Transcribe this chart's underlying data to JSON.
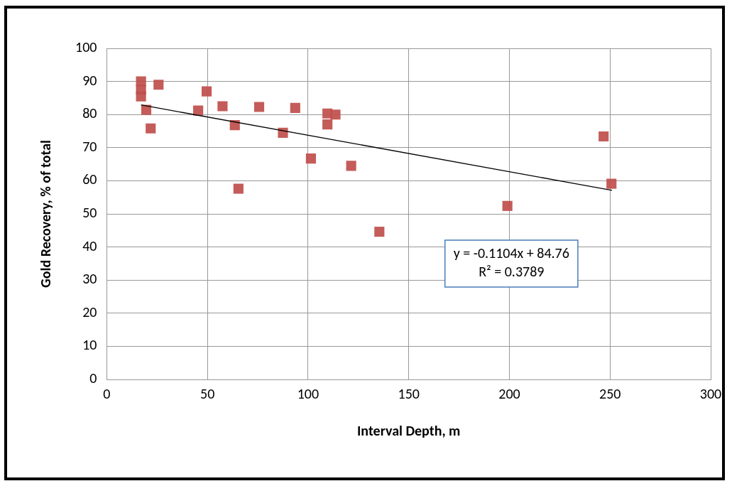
{
  "chart_data": {
    "type": "scatter",
    "xlabel": "Interval Depth, m",
    "ylabel": "Gold Recovery, % of total",
    "xlim": [
      0,
      300
    ],
    "xticks": [
      0,
      50,
      100,
      150,
      200,
      250,
      300
    ],
    "ylim": [
      0,
      100
    ],
    "yticks": [
      0,
      10,
      20,
      30,
      40,
      50,
      60,
      70,
      80,
      90,
      100
    ],
    "grid": true,
    "legend": false,
    "marker": "square",
    "series": [
      {
        "color": "#c0504d",
        "x": [
          17,
          17,
          17,
          25.7,
          19.6,
          21.8,
          45.4,
          49.6,
          57.5,
          63.6,
          65.4,
          75.7,
          87.5,
          93.6,
          101.4,
          109.6,
          109.6,
          113.6,
          121.4,
          135.4,
          199,
          246.8,
          250.7
        ],
        "values": [
          90,
          87.5,
          85.5,
          89,
          81.4,
          75.8,
          81.2,
          87,
          82.5,
          76.8,
          57.6,
          82.3,
          74.5,
          82,
          66.7,
          80.3,
          77,
          80,
          64.5,
          44.6,
          52.4,
          73.4,
          59.1
        ]
      },
      {
        "type": "line",
        "color": "#000000",
        "x": [
          17,
          251
        ],
        "values": [
          82.9,
          57.1
        ],
        "marker": "none"
      }
    ],
    "annotations": [
      "y = -0.1104x + 84.76\nR² = 0.3789"
    ]
  }
}
